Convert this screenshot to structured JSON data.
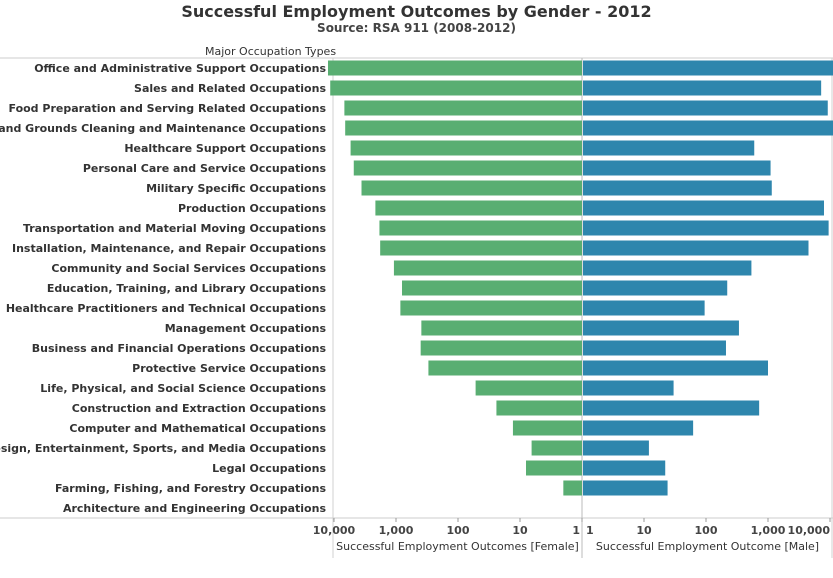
{
  "chart_data": {
    "type": "bar",
    "title": "Successful Employment Outcomes by Gender - 2012",
    "subtitle": "Source: RSA 911 (2008-2012)",
    "row_header": "Major Occupation Types",
    "scale": "log",
    "grid": false,
    "categories": [
      "Office and Administrative Support Occupations",
      "Sales and Related Occupations",
      "Food Preparation and Serving Related Occupations",
      "Building and Grounds Cleaning and Maintenance Occupations",
      "Healthcare Support Occupations",
      "Personal Care and Service Occupations",
      "Military Specific Occupations",
      "Production Occupations",
      "Transportation and Material Moving Occupations",
      "Installation, Maintenance, and Repair Occupations",
      "Community and Social Services Occupations",
      "Education, Training, and Library Occupations",
      "Healthcare Practitioners and Technical Occupations",
      "Management Occupations",
      "Business and Financial Operations Occupations",
      "Protective Service Occupations",
      "Life, Physical, and Social Science Occupations",
      "Construction and Extraction Occupations",
      "Computer and Mathematical Occupations",
      "Arts, Design, Entertainment, Sports, and Media Occupations",
      "Legal Occupations",
      "Farming, Fishing, and Forestry Occupations",
      "Architecture and Engineering Occupations"
    ],
    "series": [
      {
        "name": "Successful Employment Outcomes [Female]",
        "color": "#59ae72",
        "values": [
          12500,
          11500,
          6800,
          6600,
          5400,
          4800,
          3600,
          2150,
          1850,
          1800,
          1080,
          800,
          850,
          390,
          400,
          300,
          52,
          24,
          13,
          6.5,
          8,
          2,
          0
        ]
      },
      {
        "name": "Successful Employment Outcome [Male]",
        "color": "#2e86ad",
        "values": [
          12000,
          7200,
          9200,
          15000,
          600,
          1100,
          1150,
          8000,
          9500,
          4500,
          540,
          220,
          95,
          340,
          210,
          1000,
          30,
          720,
          62,
          12,
          22,
          24,
          0
        ]
      }
    ],
    "female_axis": {
      "title": "Successful Employment Outcomes [Female]",
      "ticks": [
        "10,000",
        "1,000",
        "100",
        "10",
        "1"
      ],
      "tick_values": [
        10000,
        1000,
        100,
        10,
        1
      ],
      "direction": "reversed"
    },
    "male_axis": {
      "title": "Successful Employment Outcome [Male]",
      "ticks": [
        "1",
        "10",
        "100",
        "1,000",
        "10,000"
      ],
      "tick_values": [
        1,
        10,
        100,
        1000,
        10000
      ]
    }
  }
}
